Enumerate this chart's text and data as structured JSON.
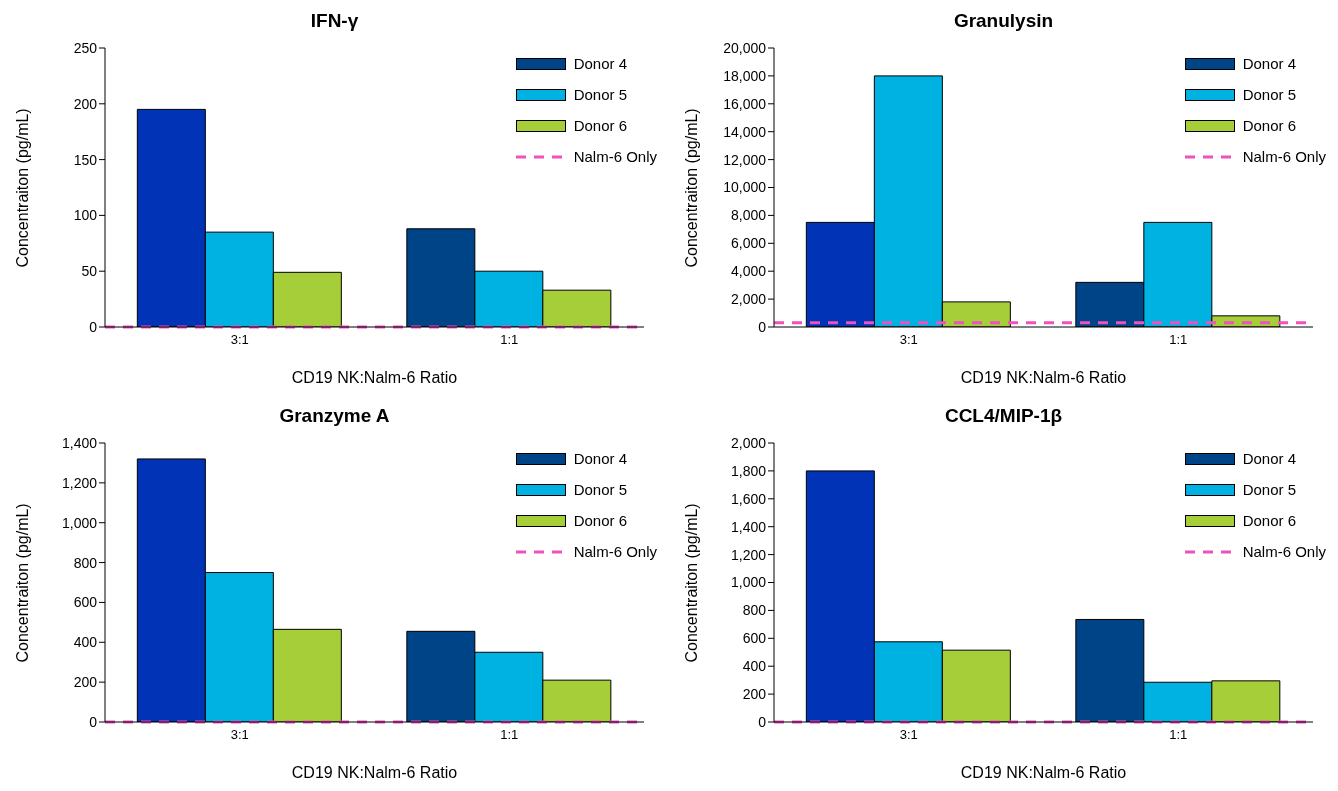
{
  "chart_data": [
    {
      "type": "bar",
      "title": "IFN-γ",
      "xlabel": "CD19 NK:Nalm-6 Ratio",
      "ylabel": "Concentraiton (pg/mL)",
      "categories": [
        "3:1",
        "1:1"
      ],
      "legend": "top right",
      "ylim": [
        0,
        250
      ],
      "yticks": [
        0,
        50,
        100,
        150,
        200,
        250
      ],
      "series": [
        {
          "name": "Donor 4",
          "color": "#004488",
          "colors": [
            "#0033b5",
            "#004488"
          ],
          "values": [
            195,
            88
          ]
        },
        {
          "name": "Donor 5",
          "color": "#00b2e2",
          "values": [
            85,
            50
          ]
        },
        {
          "name": "Donor 6",
          "color": "#a6ce39",
          "values": [
            49,
            33
          ]
        }
      ],
      "ref_lines": [
        {
          "axis": "y",
          "value": 0,
          "label": "Nalm-6 Only",
          "color": "#f050c0",
          "line_style": "dashed"
        }
      ]
    },
    {
      "type": "bar",
      "title": "Granulysin",
      "xlabel": "CD19 NK:Nalm-6 Ratio",
      "ylabel": "Concentraiton (pg/mL)",
      "categories": [
        "3:1",
        "1:1"
      ],
      "legend": "top right",
      "ylim": [
        0,
        20000
      ],
      "yticks": [
        0,
        {
          "value": 2000,
          "label": "2,000"
        },
        {
          "value": 4000,
          "label": "4,000"
        },
        {
          "value": 6000,
          "label": "6,000"
        },
        {
          "value": 8000,
          "label": "8,000"
        },
        {
          "value": 10000,
          "label": "10,000"
        },
        {
          "value": 12000,
          "label": "12,000"
        },
        {
          "value": 14000,
          "label": "14,000"
        },
        {
          "value": 16000,
          "label": "16,000"
        },
        {
          "value": 18000,
          "label": "18,000"
        },
        {
          "value": 20000,
          "label": "20,000"
        }
      ],
      "series": [
        {
          "name": "Donor 4",
          "color": "#004488",
          "colors": [
            "#0033b5",
            "#004488"
          ],
          "values": [
            7500,
            3200
          ]
        },
        {
          "name": "Donor 5",
          "color": "#00b2e2",
          "values": [
            18000,
            7500
          ]
        },
        {
          "name": "Donor 6",
          "color": "#a6ce39",
          "values": [
            1800,
            800
          ]
        }
      ],
      "ref_lines": [
        {
          "axis": "y",
          "value": 300,
          "label": "Nalm-6 Only",
          "color": "#f050c0",
          "line_style": "dashed"
        }
      ]
    },
    {
      "type": "bar",
      "title": "Granzyme A",
      "xlabel": "CD19 NK:Nalm-6 Ratio",
      "ylabel": "Concentraiton (pg/mL)",
      "categories": [
        "3:1",
        "1:1"
      ],
      "legend": "top right",
      "ylim": [
        0,
        1400
      ],
      "yticks": [
        0,
        200,
        400,
        600,
        800,
        {
          "value": 1000,
          "label": "1,000"
        },
        {
          "value": 1200,
          "label": "1,200"
        },
        {
          "value": 1400,
          "label": "1,400"
        }
      ],
      "series": [
        {
          "name": "Donor 4",
          "color": "#004488",
          "colors": [
            "#0033b5",
            "#004488"
          ],
          "values": [
            1320,
            455
          ]
        },
        {
          "name": "Donor 5",
          "color": "#00b2e2",
          "values": [
            750,
            350
          ]
        },
        {
          "name": "Donor 6",
          "color": "#a6ce39",
          "values": [
            465,
            210
          ]
        }
      ],
      "ref_lines": [
        {
          "axis": "y",
          "value": 0,
          "label": "Nalm-6 Only",
          "color": "#f050c0",
          "line_style": "dashed"
        }
      ]
    },
    {
      "type": "bar",
      "title": "CCL4/MIP-1β",
      "xlabel": "CD19 NK:Nalm-6 Ratio",
      "ylabel": "Concentraiton (pg/mL)",
      "categories": [
        "3:1",
        "1:1"
      ],
      "legend": "top right",
      "ylim": [
        0,
        2000
      ],
      "yticks": [
        0,
        200,
        400,
        600,
        800,
        {
          "value": 1000,
          "label": "1,000"
        },
        {
          "value": 1200,
          "label": "1,200"
        },
        {
          "value": 1400,
          "label": "1,400"
        },
        {
          "value": 1600,
          "label": "1,600"
        },
        {
          "value": 1800,
          "label": "1,800"
        },
        {
          "value": 2000,
          "label": "2,000"
        }
      ],
      "series": [
        {
          "name": "Donor 4",
          "color": "#004488",
          "colors": [
            "#0033b5",
            "#004488"
          ],
          "values": [
            1800,
            735
          ]
        },
        {
          "name": "Donor 5",
          "color": "#00b2e2",
          "values": [
            575,
            285
          ]
        },
        {
          "name": "Donor 6",
          "color": "#a6ce39",
          "values": [
            515,
            295
          ]
        }
      ],
      "ref_lines": [
        {
          "axis": "y",
          "value": 0,
          "label": "Nalm-6 Only",
          "color": "#f050c0",
          "line_style": "dashed"
        }
      ]
    }
  ]
}
